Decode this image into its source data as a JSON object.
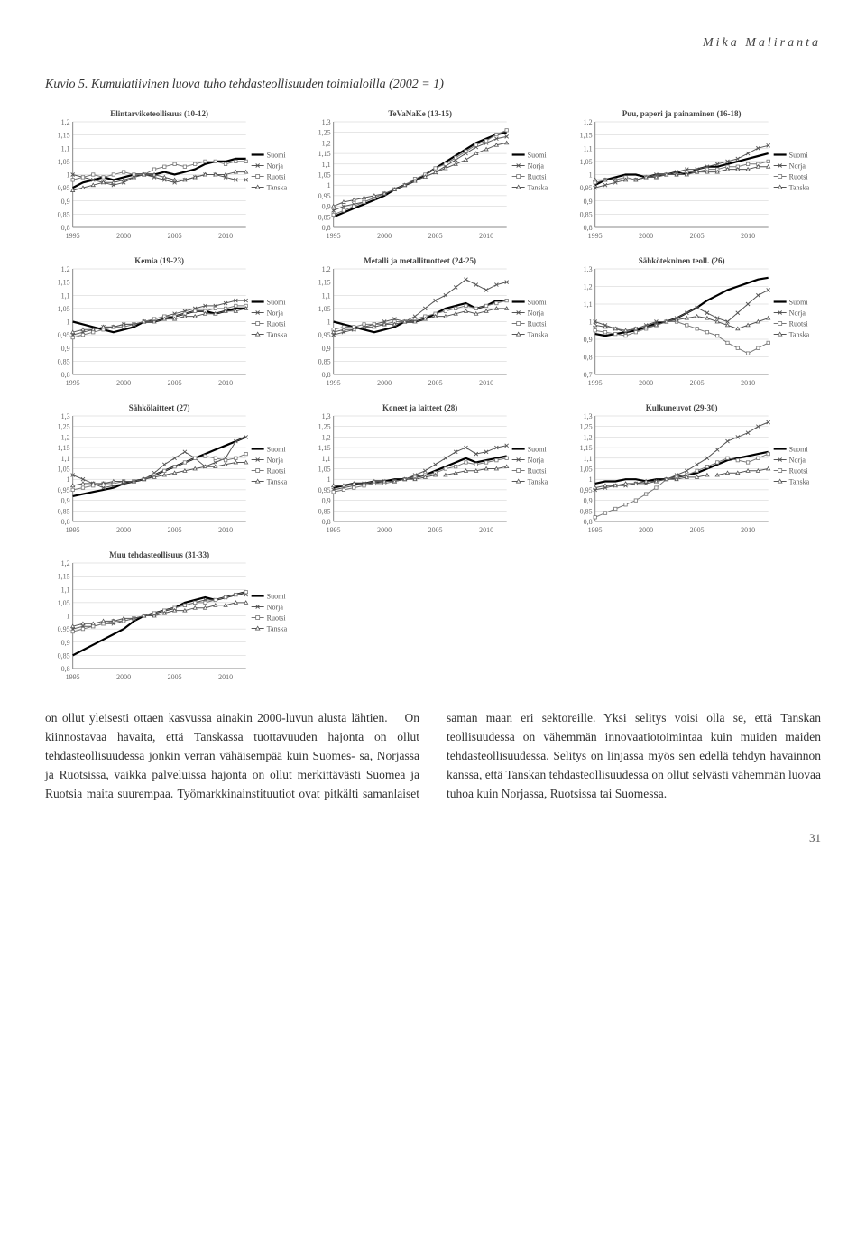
{
  "author": "Mika Maliranta",
  "figure_caption": "Kuvio 5. Kumulatiivinen luova tuho tehdasteollisuuden toimialoilla (2002 = 1)",
  "page_number": "31",
  "body_text_col1": "on ollut yleisesti ottaen kasvussa ainakin 2000-luvun alusta lähtien.\n On kiinnostavaa havaita, että Tanskassa tuottavuuden hajonta on ollut tehdasteollisuudessa jonkin verran vähäisempää kuin Suomes-",
  "body_text_col2": "sa, Norjassa ja Ruotsissa, vaikka palveluissa hajonta on ollut merkittävästi Suomea ja Ruotsia maita suurempaa. Työmarkkinainstituutiot ovat pitkälti samanlaiset saman maan eri sektoreille. Yksi selitys voisi olla se, että Tanskan teollisuudessa on vähemmän innovaatiotoimintaa kuin muiden maiden tehdasteollisuudessa. Selitys on linjassa myös sen edellä tehdyn havainnon kanssa, että Tanskan tehdasteollisuudessa on ollut selvästi vähemmän luovaa tuhoa kuin Norjassa, Ruotsissa tai Suomessa.",
  "legend_labels": [
    "Suomi",
    "Norja",
    "Ruotsi",
    "Tanska"
  ],
  "series_colors": {
    "suomi": "#000000",
    "norja": "#555555",
    "ruotsi": "#777777",
    "tanska": "#555555"
  },
  "series_markers": {
    "suomi": "none",
    "norja": "x",
    "ruotsi": "square",
    "tanska": "triangle"
  },
  "series_linewidth": {
    "suomi": 2.2,
    "norja": 1.0,
    "ruotsi": 1.0,
    "tanska": 1.0
  },
  "x_axis": {
    "min": 1995,
    "max": 2012,
    "ticks": [
      1995,
      2000,
      2005,
      2010
    ]
  },
  "charts": [
    {
      "title": "Elintarviketeollisuus (10-12)",
      "ylim": [
        0.8,
        1.2
      ],
      "ystep": 0.05,
      "series": {
        "suomi": [
          0.95,
          0.97,
          0.98,
          0.99,
          0.98,
          0.99,
          1.0,
          1.0,
          1.0,
          1.01,
          1.0,
          1.01,
          1.02,
          1.04,
          1.05,
          1.05,
          1.06,
          1.06
        ],
        "norja": [
          1.0,
          0.99,
          0.98,
          0.97,
          0.96,
          0.97,
          0.99,
          1.0,
          0.99,
          0.98,
          0.97,
          0.98,
          0.99,
          1.0,
          1.0,
          0.99,
          0.98,
          0.98
        ],
        "ruotsi": [
          0.98,
          0.99,
          1.0,
          0.99,
          1.0,
          1.01,
          1.0,
          1.0,
          1.02,
          1.03,
          1.04,
          1.03,
          1.04,
          1.05,
          1.05,
          1.04,
          1.05,
          1.05
        ],
        "tanska": [
          0.94,
          0.95,
          0.96,
          0.97,
          0.97,
          0.98,
          0.99,
          1.0,
          1.0,
          0.99,
          0.98,
          0.98,
          0.99,
          1.0,
          1.0,
          1.0,
          1.01,
          1.01
        ]
      }
    },
    {
      "title": "TeVaNaKe (13-15)",
      "ylim": [
        0.8,
        1.3
      ],
      "ystep": 0.05,
      "series": {
        "suomi": [
          0.85,
          0.87,
          0.89,
          0.91,
          0.93,
          0.95,
          0.98,
          1.0,
          1.02,
          1.05,
          1.08,
          1.11,
          1.14,
          1.17,
          1.2,
          1.22,
          1.24,
          1.25
        ],
        "norja": [
          0.88,
          0.9,
          0.91,
          0.92,
          0.94,
          0.96,
          0.98,
          1.0,
          1.02,
          1.04,
          1.06,
          1.09,
          1.12,
          1.15,
          1.18,
          1.2,
          1.22,
          1.23
        ],
        "ruotsi": [
          0.86,
          0.88,
          0.9,
          0.92,
          0.94,
          0.96,
          0.98,
          1.0,
          1.03,
          1.05,
          1.08,
          1.1,
          1.13,
          1.16,
          1.19,
          1.21,
          1.24,
          1.26
        ],
        "tanska": [
          0.9,
          0.92,
          0.93,
          0.94,
          0.95,
          0.96,
          0.98,
          1.0,
          1.02,
          1.04,
          1.06,
          1.08,
          1.1,
          1.12,
          1.15,
          1.17,
          1.19,
          1.2
        ]
      }
    },
    {
      "title": "Puu, paperi ja painaminen (16-18)",
      "ylim": [
        0.8,
        1.2
      ],
      "ystep": 0.05,
      "series": {
        "suomi": [
          0.96,
          0.98,
          0.99,
          1.0,
          1.0,
          0.99,
          1.0,
          1.0,
          1.01,
          1.0,
          1.02,
          1.03,
          1.03,
          1.04,
          1.05,
          1.06,
          1.07,
          1.08
        ],
        "norja": [
          0.95,
          0.96,
          0.97,
          0.98,
          0.98,
          0.99,
          1.0,
          1.0,
          1.01,
          1.02,
          1.02,
          1.03,
          1.04,
          1.05,
          1.06,
          1.08,
          1.1,
          1.11
        ],
        "ruotsi": [
          0.97,
          0.98,
          0.98,
          0.99,
          0.98,
          0.99,
          0.99,
          1.0,
          1.0,
          1.01,
          1.01,
          1.02,
          1.02,
          1.03,
          1.03,
          1.04,
          1.04,
          1.05
        ],
        "tanska": [
          0.98,
          0.98,
          0.98,
          0.98,
          0.98,
          0.99,
          0.99,
          1.0,
          1.0,
          1.0,
          1.01,
          1.01,
          1.01,
          1.02,
          1.02,
          1.02,
          1.03,
          1.03
        ]
      }
    },
    {
      "title": "Kemia (19-23)",
      "ylim": [
        0.8,
        1.2
      ],
      "ystep": 0.05,
      "series": {
        "suomi": [
          1.0,
          0.99,
          0.98,
          0.97,
          0.96,
          0.97,
          0.98,
          1.0,
          1.0,
          1.01,
          1.02,
          1.03,
          1.04,
          1.04,
          1.03,
          1.04,
          1.05,
          1.05
        ],
        "norja": [
          0.95,
          0.96,
          0.97,
          0.98,
          0.98,
          0.99,
          0.99,
          1.0,
          1.01,
          1.02,
          1.03,
          1.04,
          1.05,
          1.06,
          1.06,
          1.07,
          1.08,
          1.08
        ],
        "ruotsi": [
          0.94,
          0.95,
          0.96,
          0.97,
          0.98,
          0.98,
          0.99,
          1.0,
          1.01,
          1.02,
          1.02,
          1.03,
          1.04,
          1.04,
          1.05,
          1.05,
          1.06,
          1.06
        ],
        "tanska": [
          0.96,
          0.97,
          0.97,
          0.98,
          0.98,
          0.99,
          0.99,
          1.0,
          1.0,
          1.01,
          1.01,
          1.02,
          1.02,
          1.03,
          1.03,
          1.04,
          1.04,
          1.05
        ]
      }
    },
    {
      "title": "Metalli ja metallituotteet (24-25)",
      "ylim": [
        0.8,
        1.2
      ],
      "ystep": 0.05,
      "series": {
        "suomi": [
          1.0,
          0.99,
          0.98,
          0.97,
          0.96,
          0.97,
          0.98,
          1.0,
          1.0,
          1.01,
          1.03,
          1.05,
          1.06,
          1.07,
          1.05,
          1.06,
          1.08,
          1.08
        ],
        "norja": [
          0.95,
          0.96,
          0.97,
          0.98,
          0.99,
          1.0,
          1.01,
          1.0,
          1.02,
          1.05,
          1.08,
          1.1,
          1.13,
          1.16,
          1.14,
          1.12,
          1.14,
          1.15
        ],
        "ruotsi": [
          0.97,
          0.98,
          0.98,
          0.99,
          0.99,
          0.99,
          1.0,
          1.0,
          1.01,
          1.02,
          1.03,
          1.04,
          1.05,
          1.06,
          1.05,
          1.06,
          1.07,
          1.08
        ],
        "tanska": [
          0.96,
          0.97,
          0.97,
          0.98,
          0.98,
          0.99,
          0.99,
          1.0,
          1.0,
          1.01,
          1.02,
          1.02,
          1.03,
          1.04,
          1.03,
          1.04,
          1.05,
          1.05
        ]
      }
    },
    {
      "title": "Sähkötekninen teoll. (26)",
      "ylim": [
        0.7,
        1.3
      ],
      "ystep": 0.1,
      "series": {
        "suomi": [
          0.93,
          0.92,
          0.93,
          0.94,
          0.95,
          0.97,
          0.99,
          1.0,
          1.02,
          1.05,
          1.08,
          1.12,
          1.15,
          1.18,
          1.2,
          1.22,
          1.24,
          1.25
        ],
        "norja": [
          1.0,
          0.98,
          0.96,
          0.94,
          0.96,
          0.98,
          1.0,
          1.0,
          1.02,
          1.05,
          1.08,
          1.05,
          1.02,
          1.0,
          1.05,
          1.1,
          1.15,
          1.18
        ],
        "ruotsi": [
          0.95,
          0.94,
          0.93,
          0.92,
          0.94,
          0.96,
          0.98,
          1.0,
          1.0,
          0.98,
          0.96,
          0.94,
          0.92,
          0.88,
          0.85,
          0.82,
          0.85,
          0.88
        ],
        "tanska": [
          0.98,
          0.97,
          0.96,
          0.95,
          0.96,
          0.97,
          0.98,
          1.0,
          1.01,
          1.02,
          1.03,
          1.02,
          1.0,
          0.98,
          0.96,
          0.98,
          1.0,
          1.02
        ]
      }
    },
    {
      "title": "Sähkölaitteet (27)",
      "ylim": [
        0.8,
        1.3
      ],
      "ystep": 0.05,
      "series": {
        "suomi": [
          0.92,
          0.93,
          0.94,
          0.95,
          0.96,
          0.98,
          0.99,
          1.0,
          1.02,
          1.04,
          1.06,
          1.08,
          1.1,
          1.12,
          1.14,
          1.16,
          1.18,
          1.2
        ],
        "norja": [
          1.02,
          1.0,
          0.98,
          0.96,
          0.97,
          0.98,
          0.99,
          1.0,
          1.03,
          1.07,
          1.1,
          1.13,
          1.1,
          1.06,
          1.08,
          1.1,
          1.18,
          1.2
        ],
        "ruotsi": [
          0.95,
          0.96,
          0.97,
          0.98,
          0.98,
          0.99,
          0.99,
          1.0,
          1.02,
          1.04,
          1.06,
          1.08,
          1.1,
          1.11,
          1.1,
          1.09,
          1.1,
          1.12
        ],
        "tanska": [
          0.97,
          0.98,
          0.98,
          0.98,
          0.99,
          0.99,
          0.99,
          1.0,
          1.01,
          1.02,
          1.03,
          1.04,
          1.05,
          1.06,
          1.06,
          1.07,
          1.08,
          1.08
        ]
      }
    },
    {
      "title": "Koneet ja laitteet (28)",
      "ylim": [
        0.8,
        1.3
      ],
      "ystep": 0.05,
      "series": {
        "suomi": [
          0.96,
          0.97,
          0.98,
          0.98,
          0.99,
          0.99,
          1.0,
          1.0,
          1.01,
          1.02,
          1.04,
          1.06,
          1.08,
          1.1,
          1.08,
          1.09,
          1.1,
          1.11
        ],
        "norja": [
          0.95,
          0.96,
          0.97,
          0.98,
          0.98,
          0.99,
          0.99,
          1.0,
          1.02,
          1.04,
          1.07,
          1.1,
          1.13,
          1.15,
          1.12,
          1.13,
          1.15,
          1.16
        ],
        "ruotsi": [
          0.94,
          0.95,
          0.96,
          0.97,
          0.98,
          0.98,
          0.99,
          1.0,
          1.01,
          1.02,
          1.03,
          1.05,
          1.06,
          1.08,
          1.07,
          1.08,
          1.09,
          1.1
        ],
        "tanska": [
          0.97,
          0.97,
          0.98,
          0.98,
          0.99,
          0.99,
          0.99,
          1.0,
          1.0,
          1.01,
          1.02,
          1.02,
          1.03,
          1.04,
          1.04,
          1.05,
          1.05,
          1.06
        ]
      }
    },
    {
      "title": "Kulkuneuvot (29-30)",
      "ylim": [
        0.8,
        1.3
      ],
      "ystep": 0.05,
      "series": {
        "suomi": [
          0.98,
          0.99,
          0.99,
          1.0,
          1.0,
          0.99,
          1.0,
          1.0,
          1.01,
          1.02,
          1.03,
          1.05,
          1.07,
          1.09,
          1.1,
          1.11,
          1.12,
          1.13
        ],
        "norja": [
          0.95,
          0.96,
          0.97,
          0.97,
          0.98,
          0.98,
          0.99,
          1.0,
          1.02,
          1.04,
          1.07,
          1.1,
          1.14,
          1.18,
          1.2,
          1.22,
          1.25,
          1.27
        ],
        "ruotsi": [
          0.82,
          0.84,
          0.86,
          0.88,
          0.9,
          0.93,
          0.96,
          1.0,
          1.01,
          1.02,
          1.04,
          1.06,
          1.08,
          1.1,
          1.09,
          1.08,
          1.1,
          1.12
        ],
        "tanska": [
          0.96,
          0.97,
          0.97,
          0.98,
          0.98,
          0.99,
          0.99,
          1.0,
          1.0,
          1.01,
          1.01,
          1.02,
          1.02,
          1.03,
          1.03,
          1.04,
          1.04,
          1.05
        ]
      }
    },
    {
      "title": "Muu tehdasteollisuus (31-33)",
      "ylim": [
        0.8,
        1.2
      ],
      "ystep": 0.05,
      "series": {
        "suomi": [
          0.85,
          0.87,
          0.89,
          0.91,
          0.93,
          0.95,
          0.98,
          1.0,
          1.01,
          1.02,
          1.03,
          1.05,
          1.06,
          1.07,
          1.06,
          1.07,
          1.08,
          1.09
        ],
        "norja": [
          0.95,
          0.96,
          0.96,
          0.97,
          0.97,
          0.98,
          0.99,
          1.0,
          1.01,
          1.02,
          1.03,
          1.04,
          1.05,
          1.06,
          1.06,
          1.07,
          1.08,
          1.08
        ],
        "ruotsi": [
          0.94,
          0.95,
          0.96,
          0.97,
          0.98,
          0.98,
          0.99,
          1.0,
          1.01,
          1.02,
          1.03,
          1.04,
          1.05,
          1.05,
          1.06,
          1.07,
          1.08,
          1.09
        ],
        "tanska": [
          0.96,
          0.97,
          0.97,
          0.98,
          0.98,
          0.99,
          0.99,
          1.0,
          1.0,
          1.01,
          1.02,
          1.02,
          1.03,
          1.03,
          1.04,
          1.04,
          1.05,
          1.05
        ]
      }
    }
  ]
}
